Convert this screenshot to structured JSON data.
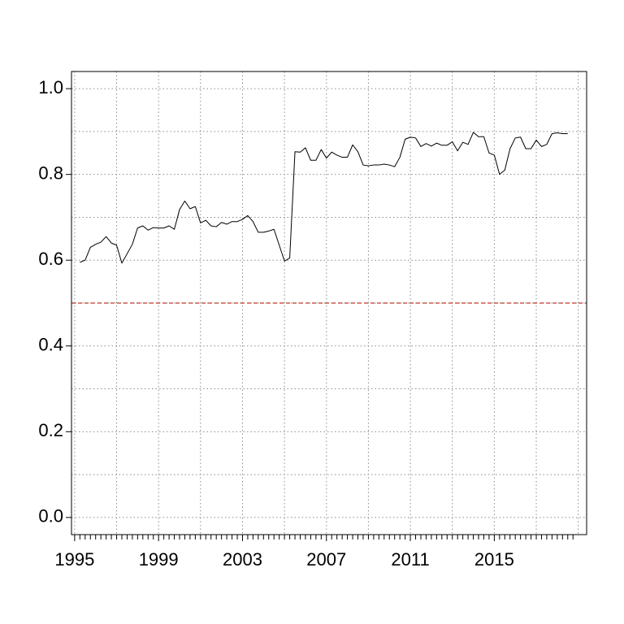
{
  "chart_data": {
    "type": "line",
    "title": "",
    "xlabel": "",
    "ylabel": "",
    "xlim": [
      1994.85,
      2019.4
    ],
    "ylim": [
      -0.04,
      1.04
    ],
    "x_ticks": [
      1995,
      1999,
      2003,
      2007,
      2011,
      2015
    ],
    "x_tick_labels": [
      "1995",
      "1999",
      "2003",
      "2007",
      "2011",
      "2015"
    ],
    "y_ticks": [
      0.0,
      0.2,
      0.4,
      0.6,
      0.8,
      1.0
    ],
    "y_tick_labels": [
      "0.0",
      "0.2",
      "0.4",
      "0.6",
      "0.8",
      "1.0"
    ],
    "minor_x_step": 0.25,
    "grid": true,
    "reference_line": {
      "y": 0.5,
      "color": "#c0392b",
      "style": "dashed"
    },
    "series": [
      {
        "color": "#000000",
        "x": [
          1995.25,
          1995.5,
          1995.75,
          1996.0,
          1996.25,
          1996.5,
          1996.75,
          1997.0,
          1997.25,
          1997.5,
          1997.75,
          1998.0,
          1998.25,
          1998.5,
          1998.75,
          1999.0,
          1999.25,
          1999.5,
          1999.75,
          2000.0,
          2000.25,
          2000.5,
          2000.75,
          2001.0,
          2001.25,
          2001.5,
          2001.75,
          2002.0,
          2002.25,
          2002.5,
          2002.75,
          2003.0,
          2003.25,
          2003.5,
          2003.75,
          2004.0,
          2004.25,
          2004.5,
          2004.75,
          2005.0,
          2005.25,
          2005.5,
          2005.75,
          2006.0,
          2006.25,
          2006.5,
          2006.75,
          2007.0,
          2007.25,
          2007.5,
          2007.75,
          2008.0,
          2008.25,
          2008.5,
          2008.75,
          2009.0,
          2009.25,
          2009.5,
          2009.75,
          2010.0,
          2010.25,
          2010.5,
          2010.75,
          2011.0,
          2011.25,
          2011.5,
          2011.75,
          2012.0,
          2012.25,
          2012.5,
          2012.75,
          2013.0,
          2013.25,
          2013.5,
          2013.75,
          2014.0,
          2014.25,
          2014.5,
          2014.75,
          2015.0,
          2015.25,
          2015.5,
          2015.75,
          2016.0,
          2016.25,
          2016.5,
          2016.75,
          2017.0,
          2017.25,
          2017.5,
          2017.75,
          2018.0,
          2018.25,
          2018.5
        ],
        "values": [
          0.595,
          0.6,
          0.63,
          0.637,
          0.642,
          0.655,
          0.64,
          0.635,
          0.593,
          0.615,
          0.637,
          0.675,
          0.68,
          0.67,
          0.676,
          0.675,
          0.675,
          0.68,
          0.672,
          0.718,
          0.738,
          0.72,
          0.725,
          0.687,
          0.693,
          0.68,
          0.678,
          0.688,
          0.684,
          0.69,
          0.69,
          0.695,
          0.704,
          0.69,
          0.665,
          0.665,
          0.668,
          0.672,
          0.635,
          0.598,
          0.605,
          0.853,
          0.852,
          0.862,
          0.833,
          0.833,
          0.858,
          0.838,
          0.852,
          0.845,
          0.84,
          0.84,
          0.869,
          0.853,
          0.822,
          0.82,
          0.822,
          0.822,
          0.824,
          0.822,
          0.818,
          0.84,
          0.882,
          0.887,
          0.885,
          0.865,
          0.872,
          0.866,
          0.873,
          0.868,
          0.868,
          0.876,
          0.855,
          0.875,
          0.87,
          0.898,
          0.888,
          0.888,
          0.85,
          0.845,
          0.8,
          0.81,
          0.86,
          0.885,
          0.887,
          0.86,
          0.86,
          0.88,
          0.865,
          0.87,
          0.895,
          0.897,
          0.895,
          0.895
        ]
      }
    ]
  }
}
